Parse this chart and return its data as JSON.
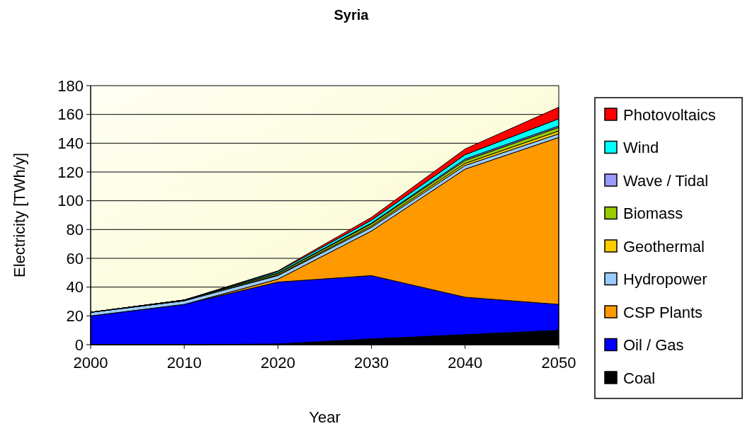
{
  "chart_data": {
    "type": "area",
    "stacked": true,
    "title": "Syria",
    "xlabel": "Year",
    "ylabel": "Electricity [TWh/y]",
    "x": [
      2000,
      2010,
      2020,
      2030,
      2040,
      2050
    ],
    "xlim": [
      2000,
      2050
    ],
    "xticks": [
      2000,
      2010,
      2020,
      2030,
      2040,
      2050
    ],
    "ylim": [
      0,
      180
    ],
    "yticks": [
      0,
      20,
      40,
      60,
      80,
      100,
      120,
      140,
      160,
      180
    ],
    "grid": "y",
    "legend": "right",
    "series": [
      {
        "name": "Coal",
        "color": "#000000",
        "values": [
          0,
          0,
          0.5,
          4,
          7,
          10
        ]
      },
      {
        "name": "Oil / Gas",
        "color": "#0000ff",
        "values": [
          20,
          28,
          43,
          44,
          26,
          18
        ]
      },
      {
        "name": "CSP Plants",
        "color": "#ff9900",
        "values": [
          0,
          0,
          2,
          31,
          89,
          116
        ]
      },
      {
        "name": "Hydropower",
        "color": "#99ccff",
        "values": [
          2.5,
          2.5,
          2.5,
          2.5,
          2.5,
          2.5
        ]
      },
      {
        "name": "Geothermal",
        "color": "#ffcc00",
        "values": [
          0,
          0,
          0.5,
          1,
          1.5,
          2
        ]
      },
      {
        "name": "Biomass",
        "color": "#99cc00",
        "values": [
          0,
          0.5,
          1,
          1.5,
          2,
          2.5
        ]
      },
      {
        "name": "Wave / Tidal",
        "color": "#9999ff",
        "values": [
          0,
          0,
          0.3,
          0.5,
          1,
          1
        ]
      },
      {
        "name": "Wind",
        "color": "#00ffff",
        "values": [
          0,
          0,
          1,
          2,
          3,
          5
        ]
      },
      {
        "name": "Photovoltaics",
        "color": "#ff0000",
        "values": [
          0,
          0,
          0.5,
          2,
          4,
          8
        ]
      }
    ]
  }
}
